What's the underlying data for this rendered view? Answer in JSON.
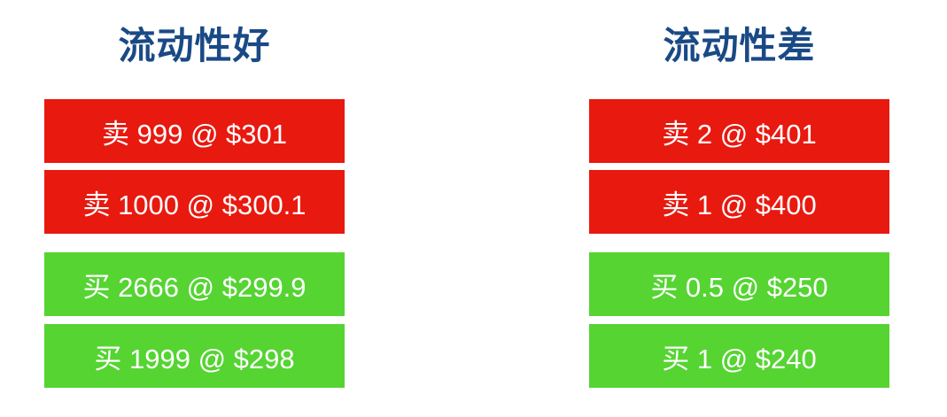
{
  "left_panel": {
    "title": "流动性好",
    "orders": [
      {
        "label": "卖 999 @ $301",
        "side": "sell"
      },
      {
        "label": "卖 1000 @ $300.1",
        "side": "sell"
      },
      {
        "label": "买 2666 @ $299.9",
        "side": "buy"
      },
      {
        "label": "买 1999 @ $298",
        "side": "buy"
      }
    ]
  },
  "right_panel": {
    "title": "流动性差",
    "orders": [
      {
        "label": "卖 2 @ $401",
        "side": "sell"
      },
      {
        "label": "卖 1 @ $400",
        "side": "sell"
      },
      {
        "label": "买 0.5 @ $250",
        "side": "buy"
      },
      {
        "label": "买 1 @ $240",
        "side": "buy"
      }
    ]
  },
  "colors": {
    "title": "#1a4a85",
    "sell": "#e8190f",
    "buy": "#55d432"
  }
}
